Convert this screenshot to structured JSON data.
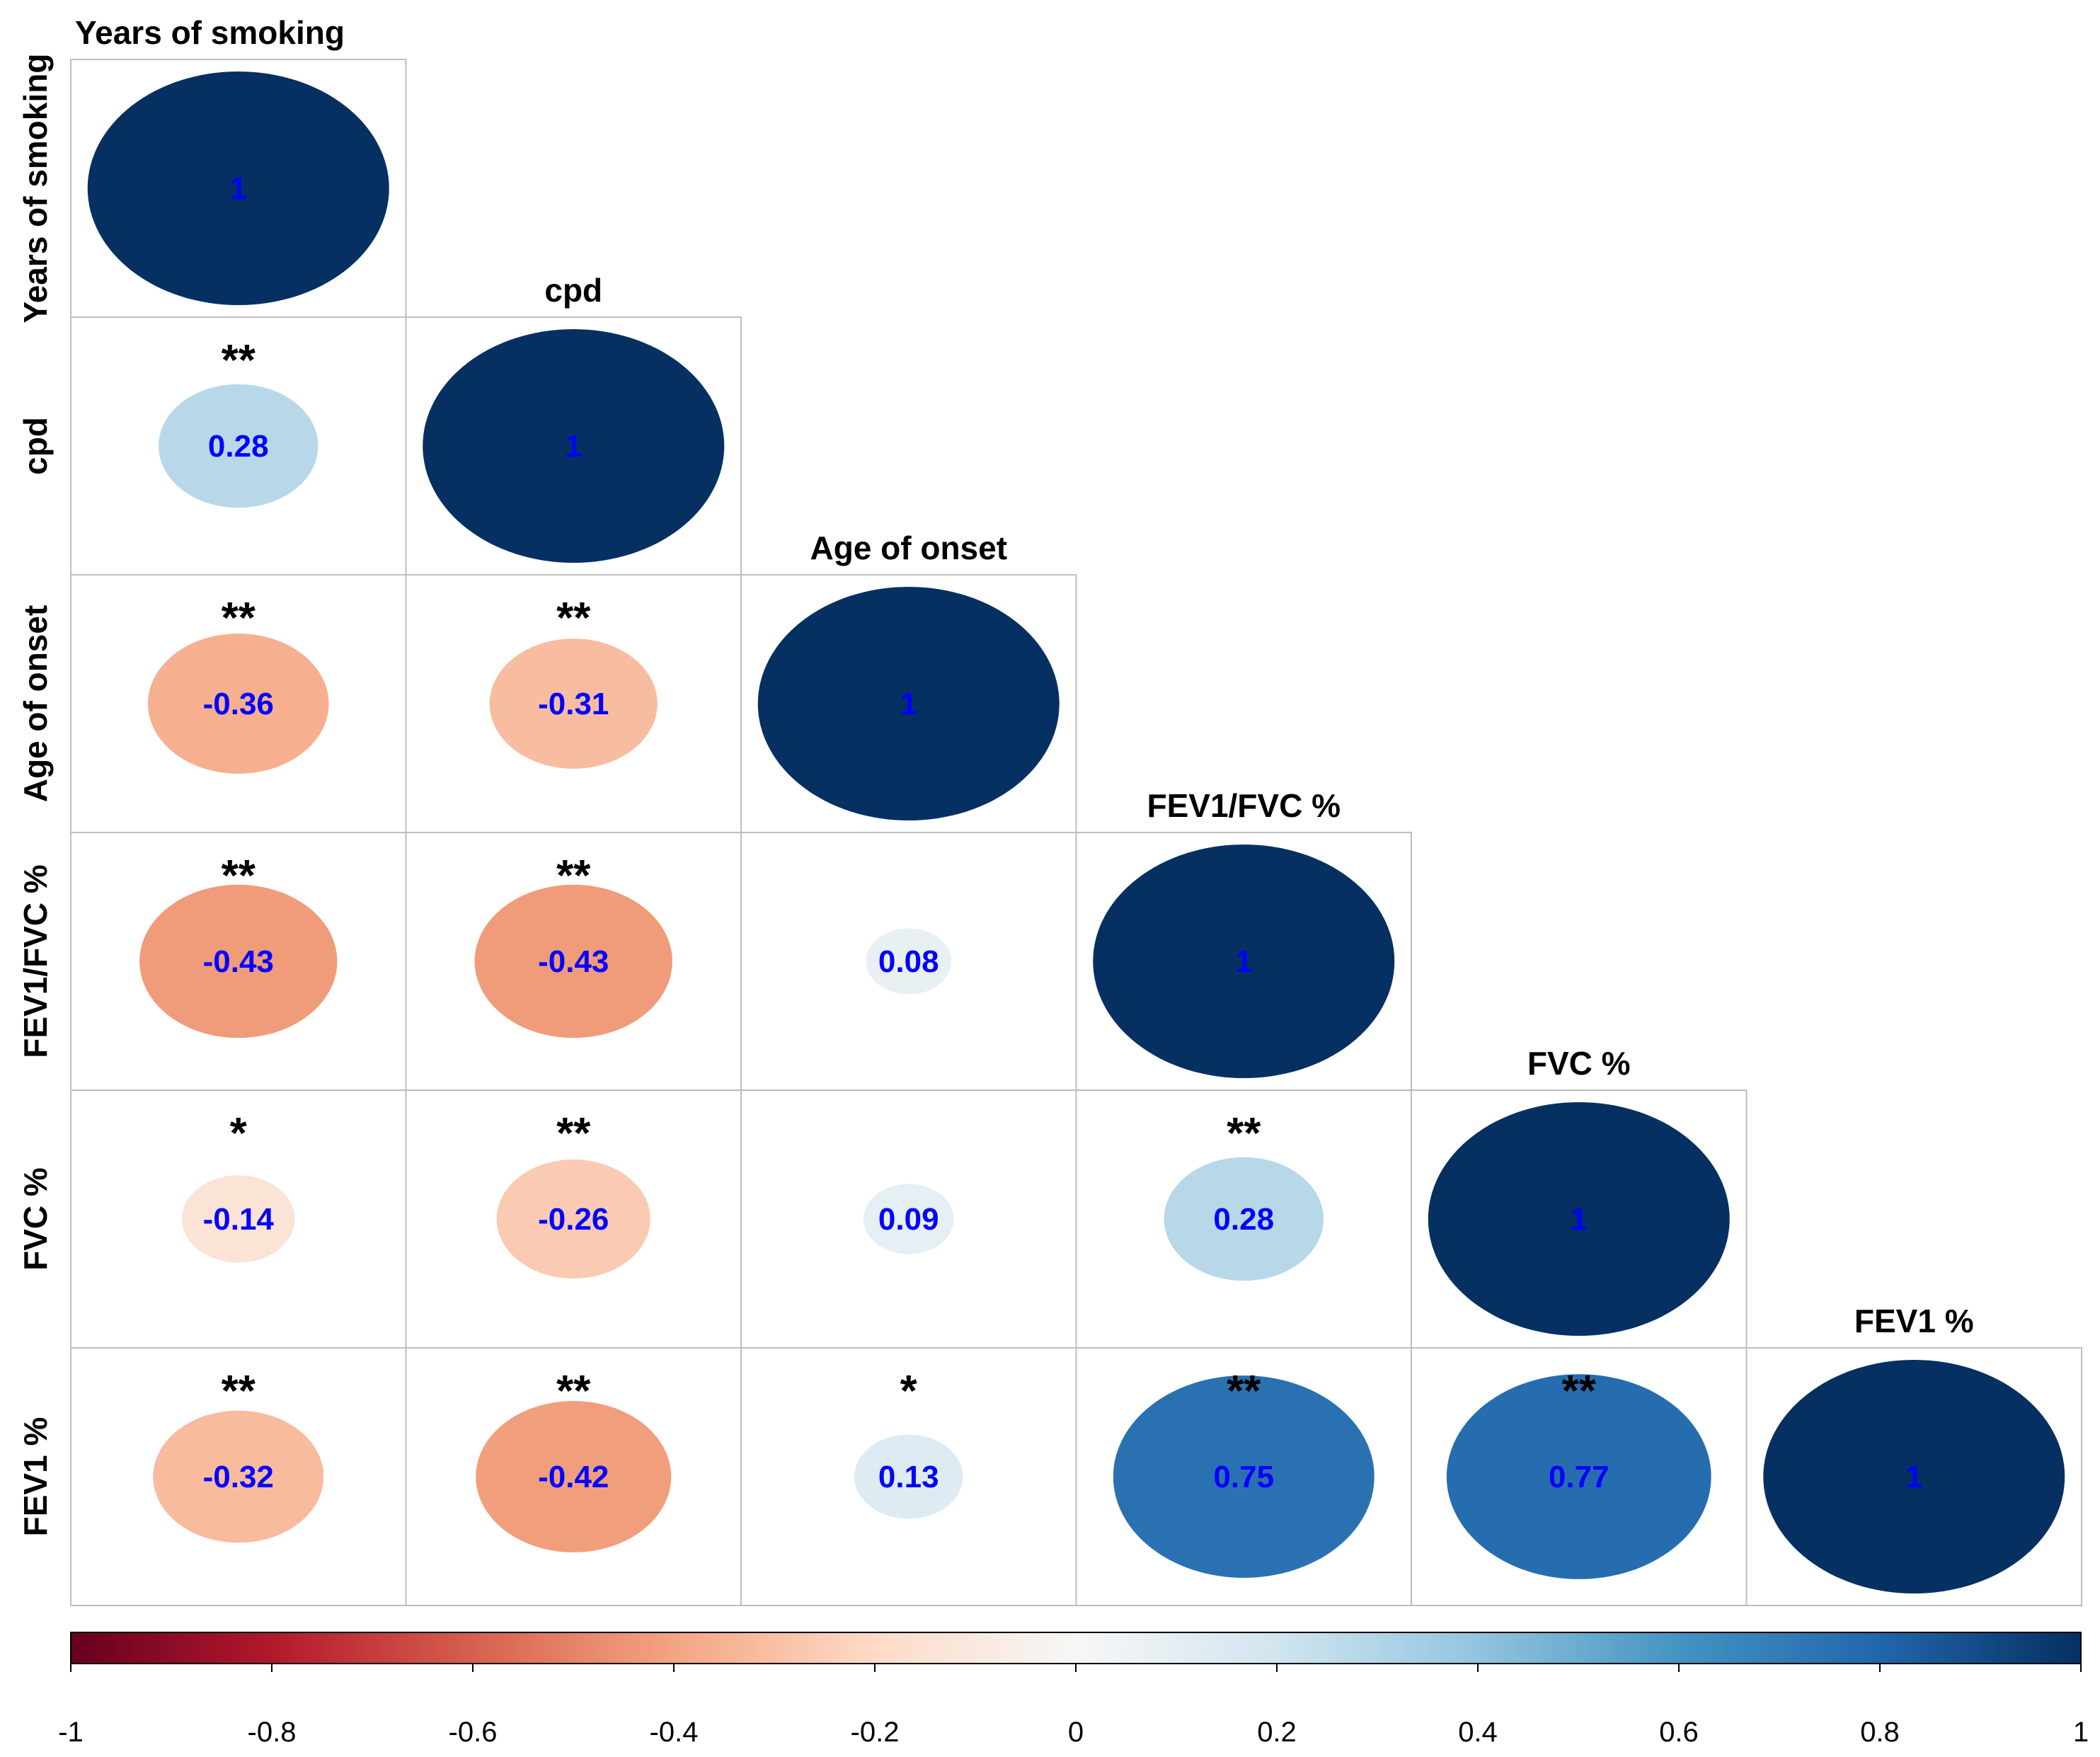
{
  "chart_data": {
    "type": "heatmap",
    "subtype": "correlation-matrix-lower-triangle",
    "shape": "ellipse",
    "variables": [
      "Years of smoking",
      "cpd",
      "Age of onset",
      "FEV1/FVC %",
      "FVC %",
      "FEV1 %"
    ],
    "matrix": [
      [
        1,
        null,
        null,
        null,
        null,
        null
      ],
      [
        0.28,
        1,
        null,
        null,
        null,
        null
      ],
      [
        -0.36,
        -0.31,
        1,
        null,
        null,
        null
      ],
      [
        -0.43,
        -0.43,
        0.08,
        1,
        null,
        null
      ],
      [
        -0.14,
        -0.26,
        0.09,
        0.28,
        1,
        null
      ],
      [
        -0.32,
        -0.42,
        0.13,
        0.75,
        0.77,
        1
      ]
    ],
    "labels": [
      [
        "1",
        null,
        null,
        null,
        null,
        null
      ],
      [
        "0.28",
        "1",
        null,
        null,
        null,
        null
      ],
      [
        "-0.36",
        "-0.31",
        "1",
        null,
        null,
        null
      ],
      [
        "-0.43",
        "-0.43",
        "0.08",
        "1",
        null,
        null
      ],
      [
        "-0.14",
        "-0.26",
        "0.09",
        "0.28",
        "1",
        null
      ],
      [
        "-0.32",
        "-0.42",
        "0.13",
        "0.75",
        "0.77",
        "1"
      ]
    ],
    "significance": [
      [
        "",
        null,
        null,
        null,
        null,
        null
      ],
      [
        "**",
        "",
        null,
        null,
        null,
        null
      ],
      [
        "**",
        "**",
        "",
        null,
        null,
        null
      ],
      [
        "**",
        "**",
        "",
        "",
        null,
        null
      ],
      [
        "*",
        "**",
        "",
        "**",
        "",
        null
      ],
      [
        "**",
        "**",
        "*",
        "**",
        "**",
        ""
      ]
    ],
    "colorbar": {
      "range": [
        -1,
        1
      ],
      "ticks": [
        -1,
        -0.8,
        -0.6,
        -0.4,
        -0.2,
        0,
        0.2,
        0.4,
        0.6,
        0.8,
        1
      ],
      "tick_labels": [
        "-1",
        "-0.8",
        "-0.6",
        "-0.4",
        "-0.2",
        "0",
        "0.2",
        "0.4",
        "0.6",
        "0.8",
        "1"
      ],
      "position": "bottom"
    },
    "colors": {
      "negative_max": "#67001F",
      "neutral": "#F7F7F7",
      "positive_max": "#053061",
      "label_text": "#0000FF",
      "grid": "#BEBEBE"
    }
  }
}
